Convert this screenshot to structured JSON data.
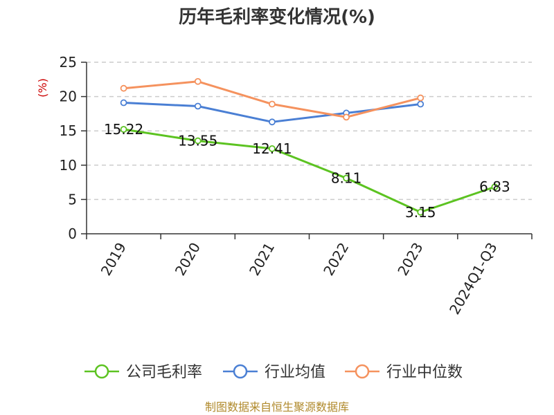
{
  "chart_data": {
    "type": "line",
    "title": "历年毛利率变化情况(%)",
    "ylabel": "(%)",
    "xlabel": "",
    "categories": [
      "2019",
      "2020",
      "2021",
      "2022",
      "2023",
      "2024Q1-Q3"
    ],
    "ylim": [
      0,
      25
    ],
    "yticks": [
      0,
      5,
      10,
      15,
      20,
      25
    ],
    "grid": "horizontal-dashed",
    "legend_position": "bottom",
    "series": [
      {
        "name": "公司毛利率",
        "color": "#5cc321",
        "values": [
          15.22,
          13.55,
          12.41,
          8.11,
          3.15,
          6.83
        ],
        "labels": [
          "15.22",
          "13.55",
          "12.41",
          "8.11",
          "3.15",
          "6.83"
        ]
      },
      {
        "name": "行业均值",
        "color": "#4a7fd4",
        "values": [
          19.1,
          18.6,
          16.3,
          17.6,
          18.9,
          null
        ]
      },
      {
        "name": "行业中位数",
        "color": "#f5925e",
        "values": [
          21.2,
          22.2,
          18.9,
          17.0,
          19.8,
          null
        ]
      }
    ]
  },
  "source": "制图数据来自恒生聚源数据库",
  "colors": {
    "ylabel": "#cc0000",
    "axis": "#333333",
    "grid": "#cccccc"
  }
}
